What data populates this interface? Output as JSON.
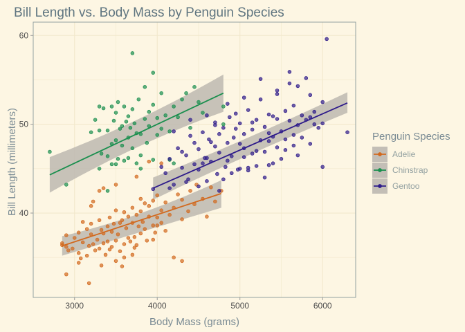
{
  "chart_data": {
    "type": "scatter",
    "title": "Bill Length vs. Body Mass by Penguin Species",
    "xlabel": "Body Mass (grams)",
    "ylabel": "Bill Length (millimeters)",
    "xlim": [
      2500,
      6400
    ],
    "ylim": [
      30.5,
      61.5
    ],
    "xticks": [
      3000,
      4000,
      5000,
      6000
    ],
    "yticks": [
      40,
      50,
      60
    ],
    "xtick_labels": [
      "3000",
      "4000",
      "5000",
      "6000"
    ],
    "ytick_labels": [
      "40",
      "50",
      "60"
    ],
    "grid": true,
    "legend_title": "Penguin Species",
    "legend_position": "right",
    "colors": {
      "background": "#fdf6e3",
      "grid": "#f2e8cc",
      "border": "#93a1a1",
      "ribbon": "#bdb8b0"
    },
    "series": [
      {
        "name": "Adelie",
        "color": "#d2691e",
        "trend": {
          "x0": 2850,
          "y0": 36.3,
          "x1": 4775,
          "y1": 42.2,
          "se_lo0": 35.2,
          "se_hi0": 37.4,
          "se_mid_lo": 38.3,
          "se_mid_hi": 39.1,
          "se_lo1": 40.6,
          "se_hi1": 43.7
        },
        "points": [
          [
            2850,
            36.4
          ],
          [
            2900,
            37.5
          ],
          [
            2900,
            36.2
          ],
          [
            2925,
            35.8
          ],
          [
            2975,
            36.0
          ],
          [
            3000,
            37.2
          ],
          [
            3050,
            35.5
          ],
          [
            3050,
            37.8
          ],
          [
            3075,
            34.9
          ],
          [
            3100,
            36.7
          ],
          [
            3150,
            38.2
          ],
          [
            3150,
            35.2
          ],
          [
            3175,
            36.3
          ],
          [
            3200,
            37.6
          ],
          [
            3200,
            38.8
          ],
          [
            3225,
            36.5
          ],
          [
            3250,
            35.8
          ],
          [
            3275,
            37.0
          ],
          [
            3300,
            39.2
          ],
          [
            3300,
            36.0
          ],
          [
            3325,
            38.1
          ],
          [
            3350,
            36.6
          ],
          [
            3350,
            37.7
          ],
          [
            3375,
            35.3
          ],
          [
            3400,
            38.5
          ],
          [
            3400,
            36.8
          ],
          [
            3425,
            39.5
          ],
          [
            3450,
            37.9
          ],
          [
            3450,
            36.2
          ],
          [
            3475,
            38.8
          ],
          [
            3500,
            36.9
          ],
          [
            3500,
            40.3
          ],
          [
            3525,
            37.6
          ],
          [
            3550,
            38.9
          ],
          [
            3550,
            35.7
          ],
          [
            3575,
            39.2
          ],
          [
            3600,
            36.5
          ],
          [
            3600,
            40.1
          ],
          [
            3625,
            38.3
          ],
          [
            3650,
            37.2
          ],
          [
            3650,
            39.6
          ],
          [
            3675,
            36.8
          ],
          [
            3700,
            38.9
          ],
          [
            3700,
            40.6
          ],
          [
            3725,
            37.3
          ],
          [
            3750,
            39.8
          ],
          [
            3750,
            36.4
          ],
          [
            3775,
            38.5
          ],
          [
            3800,
            40.2
          ],
          [
            3800,
            37.7
          ],
          [
            3825,
            39.0
          ],
          [
            3850,
            41.1
          ],
          [
            3850,
            38.2
          ],
          [
            3875,
            36.9
          ],
          [
            3900,
            39.6
          ],
          [
            3900,
            40.8
          ],
          [
            3950,
            38.6
          ],
          [
            3950,
            41.4
          ],
          [
            3975,
            37.8
          ],
          [
            4000,
            39.5
          ],
          [
            4000,
            42.0
          ],
          [
            4050,
            40.3
          ],
          [
            4050,
            38.9
          ],
          [
            4100,
            41.2
          ],
          [
            4150,
            39.8
          ],
          [
            4200,
            40.6
          ],
          [
            4250,
            42.1
          ],
          [
            4300,
            39.3
          ],
          [
            4300,
            41.5
          ],
          [
            4375,
            40.2
          ],
          [
            4400,
            42.5
          ],
          [
            4450,
            41.0
          ],
          [
            4475,
            43.2
          ],
          [
            4550,
            41.6
          ],
          [
            4600,
            39.6
          ],
          [
            4650,
            42.9
          ],
          [
            4700,
            41.3
          ],
          [
            4775,
            42.5
          ],
          [
            2850,
            36.6
          ],
          [
            3050,
            34.4
          ],
          [
            3325,
            34.1
          ],
          [
            3175,
            32.1
          ],
          [
            2900,
            33.1
          ],
          [
            3500,
            34.6
          ],
          [
            3600,
            35.0
          ],
          [
            3700,
            35.3
          ],
          [
            3575,
            34.0
          ],
          [
            3725,
            36.1
          ],
          [
            3950,
            37.0
          ],
          [
            4100,
            38.0
          ],
          [
            4200,
            35.0
          ],
          [
            4300,
            34.6
          ],
          [
            3425,
            35.9
          ],
          [
            3100,
            39.0
          ],
          [
            3200,
            40.8
          ],
          [
            3225,
            41.3
          ],
          [
            3300,
            42.5
          ],
          [
            3350,
            42.8
          ],
          [
            3500,
            43.2
          ],
          [
            3750,
            44.1
          ],
          [
            3900,
            45.8
          ],
          [
            3800,
            41.6
          ],
          [
            4050,
            45.6
          ],
          [
            4000,
            38.6
          ]
        ]
      },
      {
        "name": "Chinstrap",
        "color": "#1a8f4e",
        "trend": {
          "x0": 2700,
          "y0": 44.3,
          "x1": 4800,
          "y1": 53.5,
          "se_lo0": 42.3,
          "se_hi0": 46.3,
          "se_mid_lo": 48.3,
          "se_mid_hi": 49.6,
          "se_lo1": 51.4,
          "se_hi1": 55.6
        },
        "points": [
          [
            2700,
            46.9
          ],
          [
            2900,
            43.2
          ],
          [
            3200,
            49.1
          ],
          [
            3250,
            50.5
          ],
          [
            3300,
            45.0
          ],
          [
            3325,
            46.7
          ],
          [
            3350,
            51.8
          ],
          [
            3400,
            49.3
          ],
          [
            3400,
            46.4
          ],
          [
            3450,
            47.8
          ],
          [
            3450,
            45.5
          ],
          [
            3475,
            50.4
          ],
          [
            3500,
            48.2
          ],
          [
            3500,
            51.3
          ],
          [
            3525,
            46.1
          ],
          [
            3550,
            49.5
          ],
          [
            3575,
            47.6
          ],
          [
            3600,
            52.0
          ],
          [
            3600,
            45.9
          ],
          [
            3625,
            50.3
          ],
          [
            3650,
            48.5
          ],
          [
            3650,
            46.2
          ],
          [
            3675,
            49.6
          ],
          [
            3700,
            51.7
          ],
          [
            3700,
            47.3
          ],
          [
            3725,
            50.1
          ],
          [
            3750,
            45.6
          ],
          [
            3750,
            49.0
          ],
          [
            3775,
            52.8
          ],
          [
            3800,
            48.9
          ],
          [
            3800,
            46.5
          ],
          [
            3850,
            50.6
          ],
          [
            3875,
            47.9
          ],
          [
            3900,
            51.4
          ],
          [
            3900,
            49.8
          ],
          [
            3950,
            52.2
          ],
          [
            3950,
            46.0
          ],
          [
            4000,
            50.7
          ],
          [
            4050,
            53.5
          ],
          [
            4100,
            51.0
          ],
          [
            4150,
            49.2
          ],
          [
            4200,
            52.0
          ],
          [
            4250,
            50.8
          ],
          [
            4300,
            52.8
          ],
          [
            4350,
            53.5
          ],
          [
            4400,
            49.6
          ],
          [
            4450,
            54.2
          ],
          [
            4500,
            52.5
          ],
          [
            4550,
            51.3
          ],
          [
            4800,
            52.0
          ],
          [
            4800,
            50.0
          ],
          [
            3700,
            58.0
          ],
          [
            3950,
            55.8
          ],
          [
            3525,
            52.5
          ],
          [
            3800,
            45.0
          ],
          [
            4000,
            48.8
          ],
          [
            4050,
            49.5
          ],
          [
            4200,
            45.6
          ],
          [
            3400,
            42.5
          ],
          [
            3300,
            52.0
          ],
          [
            3450,
            52.0
          ],
          [
            4150,
            46.0
          ],
          [
            3850,
            54.2
          ],
          [
            3300,
            49.3
          ],
          [
            3575,
            49.8
          ],
          [
            3650,
            50.9
          ],
          [
            3500,
            45.5
          ]
        ]
      },
      {
        "name": "Gentoo",
        "color": "#2e1b8a",
        "trend": {
          "x0": 3950,
          "y0": 42.8,
          "x1": 6300,
          "y1": 52.4,
          "se_lo0": 41.5,
          "se_hi0": 44.0,
          "se_mid_lo": 47.2,
          "se_mid_hi": 48.0,
          "se_lo1": 51.3,
          "se_hi1": 53.6
        },
        "points": [
          [
            3950,
            42.7
          ],
          [
            4100,
            44.5
          ],
          [
            4150,
            46.1
          ],
          [
            4200,
            43.2
          ],
          [
            4250,
            47.3
          ],
          [
            4300,
            45.1
          ],
          [
            4350,
            46.5
          ],
          [
            4375,
            43.8
          ],
          [
            4400,
            48.7
          ],
          [
            4450,
            45.5
          ],
          [
            4500,
            47.2
          ],
          [
            4500,
            44.9
          ],
          [
            4550,
            49.1
          ],
          [
            4575,
            46.2
          ],
          [
            4600,
            43.6
          ],
          [
            4625,
            48.3
          ],
          [
            4650,
            45.8
          ],
          [
            4700,
            47.5
          ],
          [
            4700,
            50.2
          ],
          [
            4725,
            44.4
          ],
          [
            4750,
            48.9
          ],
          [
            4750,
            46.8
          ],
          [
            4800,
            49.6
          ],
          [
            4825,
            45.2
          ],
          [
            4850,
            47.9
          ],
          [
            4875,
            50.8
          ],
          [
            4900,
            46.4
          ],
          [
            4925,
            48.5
          ],
          [
            4950,
            51.2
          ],
          [
            4975,
            44.9
          ],
          [
            5000,
            47.8
          ],
          [
            5000,
            50.1
          ],
          [
            5050,
            46.3
          ],
          [
            5050,
            48.9
          ],
          [
            5100,
            51.6
          ],
          [
            5100,
            45.1
          ],
          [
            5150,
            49.4
          ],
          [
            5200,
            47.0
          ],
          [
            5200,
            50.5
          ],
          [
            5250,
            48.2
          ],
          [
            5250,
            52.8
          ],
          [
            5300,
            46.9
          ],
          [
            5300,
            49.7
          ],
          [
            5350,
            51.1
          ],
          [
            5350,
            45.4
          ],
          [
            5400,
            48.6
          ],
          [
            5400,
            50.9
          ],
          [
            5450,
            47.4
          ],
          [
            5450,
            53.4
          ],
          [
            5500,
            49.2
          ],
          [
            5500,
            46.1
          ],
          [
            5550,
            51.5
          ],
          [
            5550,
            48.3
          ],
          [
            5600,
            50.4
          ],
          [
            5600,
            55.9
          ],
          [
            5650,
            47.6
          ],
          [
            5650,
            52.1
          ],
          [
            5700,
            49.9
          ],
          [
            5700,
            54.3
          ],
          [
            5750,
            48.5
          ],
          [
            5750,
            51.0
          ],
          [
            5800,
            50.5
          ],
          [
            5850,
            53.3
          ],
          [
            5850,
            47.8
          ],
          [
            5900,
            51.4
          ],
          [
            5950,
            49.6
          ],
          [
            6000,
            52.5
          ],
          [
            6000,
            45.2
          ],
          [
            6050,
            59.6
          ],
          [
            6300,
            49.1
          ],
          [
            4050,
            45.2
          ],
          [
            4150,
            42.8
          ],
          [
            4350,
            43.5
          ],
          [
            4500,
            43.0
          ],
          [
            4600,
            46.2
          ],
          [
            4750,
            42.5
          ],
          [
            4800,
            43.8
          ],
          [
            4900,
            44.5
          ],
          [
            5000,
            45.0
          ],
          [
            5100,
            44.8
          ],
          [
            5200,
            45.3
          ],
          [
            5300,
            44.0
          ],
          [
            5400,
            45.6
          ],
          [
            4200,
            49.2
          ],
          [
            4400,
            50.5
          ],
          [
            4600,
            51.0
          ],
          [
            4850,
            52.3
          ],
          [
            5050,
            53.0
          ],
          [
            5250,
            55.1
          ],
          [
            5450,
            53.8
          ],
          [
            5600,
            54.6
          ],
          [
            5800,
            55.2
          ],
          [
            4450,
            47.9
          ],
          [
            4700,
            49.9
          ],
          [
            4950,
            49.5
          ],
          [
            5150,
            50.2
          ],
          [
            5350,
            49.0
          ],
          [
            5550,
            47.1
          ],
          [
            5700,
            46.5
          ],
          [
            5900,
            50.0
          ],
          [
            4300,
            46.9
          ],
          [
            4550,
            45.6
          ],
          [
            4650,
            48.0
          ],
          [
            4850,
            45.9
          ],
          [
            5050,
            47.3
          ],
          [
            5150,
            46.7
          ],
          [
            5350,
            48.1
          ],
          [
            5450,
            50.6
          ],
          [
            5650,
            48.8
          ],
          [
            5850,
            50.8
          ],
          [
            6000,
            50.1
          ]
        ]
      }
    ]
  }
}
